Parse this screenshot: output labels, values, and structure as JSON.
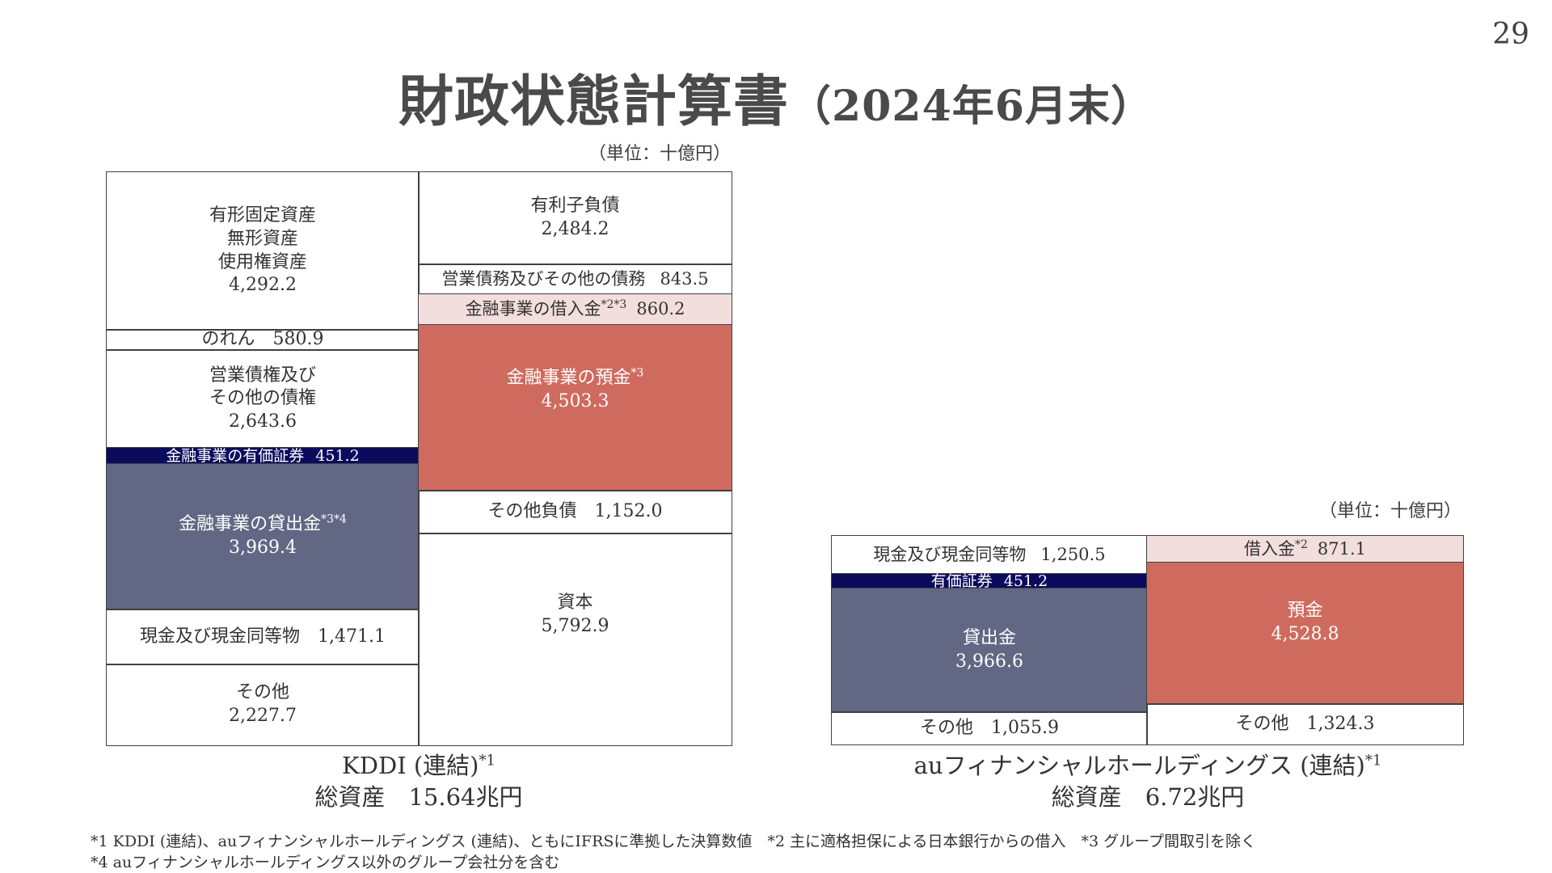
{
  "page_number": "29",
  "title": "財政状態計算書",
  "title_sub": "（2024年6月末）",
  "colors": {
    "navy": "#0b0b5e",
    "slate": "#626784",
    "salmon": "#cf6b5e",
    "pink": "#f2dedd",
    "border": "#404040"
  },
  "chart_data": [
    {
      "type": "table",
      "title": "KDDI (連結)*1 balance sheet",
      "unit": "（単位：十億円）",
      "assets": [
        {
          "label": "有形固定資産\n無形資産\n使用権資産",
          "value": 4292.2
        },
        {
          "label": "のれん",
          "value": 580.9
        },
        {
          "label": "営業債権及び\nその他の債権",
          "value": 2643.6
        },
        {
          "label": "金融事業の有価証券",
          "value": 451.2
        },
        {
          "label": "金融事業の貸出金*3*4",
          "value": 3969.4
        },
        {
          "label": "現金及び現金同等物",
          "value": 1471.1
        },
        {
          "label": "その他",
          "value": 2227.7
        }
      ],
      "liabilities_equity": [
        {
          "label": "有利子負債",
          "value": 2484.2
        },
        {
          "label": "営業債務及びその他の債務",
          "value": 843.5
        },
        {
          "label": "金融事業の借入金*2*3",
          "value": 860.2
        },
        {
          "label": "金融事業の預金*3",
          "value": 4503.3
        },
        {
          "label": "その他負債",
          "value": 1152.0
        },
        {
          "label": "資本",
          "value": 5792.9
        }
      ],
      "total_assets": "15.64兆円"
    },
    {
      "type": "table",
      "title": "auフィナンシャルホールディングス (連結)*1 balance sheet",
      "unit": "（単位：十億円）",
      "assets": [
        {
          "label": "現金及び現金同等物",
          "value": 1250.5
        },
        {
          "label": "有価証券",
          "value": 451.2
        },
        {
          "label": "貸出金",
          "value": 3966.6
        },
        {
          "label": "その他",
          "value": 1055.9
        }
      ],
      "liabilities_equity": [
        {
          "label": "借入金*2",
          "value": 871.1
        },
        {
          "label": "預金",
          "value": 4528.8
        },
        {
          "label": "その他",
          "value": 1324.3
        }
      ],
      "total_assets": "6.72兆円"
    }
  ],
  "kddi": {
    "unit": "（単位：十億円）",
    "a1": {
      "l1": "有形固定資産",
      "l2": "無形資産",
      "l3": "使用権資産",
      "v": "4,292.2"
    },
    "a2": {
      "l": "のれん",
      "v": "580.9"
    },
    "a3": {
      "l1": "営業債権及び",
      "l2": "その他の債権",
      "v": "2,643.6"
    },
    "a4": {
      "l": "金融事業の有価証券",
      "v": "451.2"
    },
    "a5": {
      "l": "金融事業の貸出金",
      "sup": "*3*4",
      "v": "3,969.4"
    },
    "a6": {
      "l": "現金及び現金同等物",
      "v": "1,471.1"
    },
    "a7": {
      "l": "その他",
      "v": "2,227.7"
    },
    "l1": {
      "l": "有利子負債",
      "v": "2,484.2"
    },
    "l2": {
      "l": "営業債務及びその他の債務",
      "v": "843.5"
    },
    "l3": {
      "l": "金融事業の借入金",
      "sup": "*2*3",
      "v": "860.2"
    },
    "l4": {
      "l": "金融事業の預金",
      "sup": "*3",
      "v": "4,503.3"
    },
    "l5": {
      "l": "その他負債",
      "v": "1,152.0"
    },
    "l6": {
      "l": "資本",
      "v": "5,792.9"
    },
    "caption1": "KDDI (連結)",
    "caption_sup": "*1",
    "caption2": "総資産　15.64兆円"
  },
  "au": {
    "unit": "（単位：十億円）",
    "a1": {
      "l": "現金及び現金同等物",
      "v": "1,250.5"
    },
    "a2": {
      "l": "有価証券",
      "v": "451.2"
    },
    "a3": {
      "l": "貸出金",
      "v": "3,966.6"
    },
    "a4": {
      "l": "その他",
      "v": "1,055.9"
    },
    "l1": {
      "l": "借入金",
      "sup": "*2",
      "v": "871.1"
    },
    "l2": {
      "l": "預金",
      "v": "4,528.8"
    },
    "l3": {
      "l": "その他",
      "v": "1,324.3"
    },
    "caption1": "auフィナンシャルホールディングス (連結)",
    "caption_sup": "*1",
    "caption2": "総資産　6.72兆円"
  },
  "footnotes": [
    "*1 KDDI (連結)、auフィナンシャルホールディングス (連結)、ともにIFRSに準拠した決算数値　*2 主に適格担保による日本銀行からの借入　*3 グループ間取引を除く",
    "*4 auフィナンシャルホールディングス以外のグループ会社分を含む"
  ]
}
